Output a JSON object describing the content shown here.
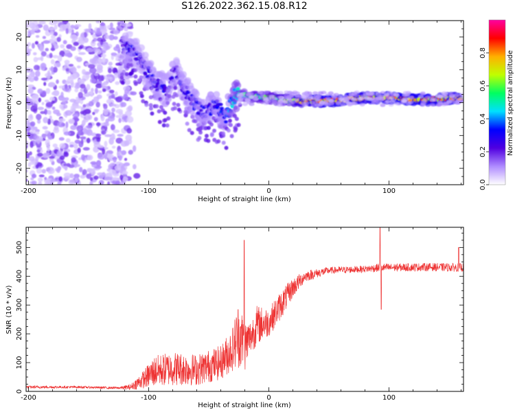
{
  "title": "S126.2022.362.15.08.R12",
  "colorbar": {
    "label": "Normalized spectral amplitude",
    "ticks": [
      "0.0",
      "0.2",
      "0.4",
      "0.6",
      "0.8"
    ],
    "tick_values": [
      0.0,
      0.2,
      0.4,
      0.6,
      0.8
    ],
    "range": [
      0.0,
      1.0
    ],
    "stops": [
      "#ffffff",
      "#b08cff",
      "#5000e0",
      "#0000ff",
      "#00e0ff",
      "#00ff60",
      "#c0ff00",
      "#ffb000",
      "#ff0000",
      "#ff00a0"
    ]
  },
  "chart_data": [
    {
      "type": "heatmap",
      "title": "",
      "xlabel": "Height of straight line (km)",
      "ylabel": "Frequency (Hz)",
      "xlim": [
        -202,
        162
      ],
      "ylim": [
        -25,
        25
      ],
      "xticks": [
        -200,
        -100,
        0,
        100
      ],
      "xtick_labels": [
        "-200",
        "-100",
        "0",
        "100"
      ],
      "yticks": [
        -20,
        -10,
        0,
        10,
        20
      ],
      "ytick_labels": [
        "-20",
        "-10",
        "0",
        "10",
        "20"
      ],
      "noise_region": {
        "x": [
          -202,
          -115
        ],
        "y": [
          -25,
          25
        ],
        "amplitude": [
          0.05,
          0.2
        ]
      },
      "signal_track": [
        {
          "x": -122,
          "y": 17,
          "amp": 0.25
        },
        {
          "x": -115,
          "y": 16,
          "amp": 0.3
        },
        {
          "x": -105,
          "y": 12,
          "amp": 0.25
        },
        {
          "x": -98,
          "y": 8,
          "amp": 0.3
        },
        {
          "x": -92,
          "y": 5,
          "amp": 0.3
        },
        {
          "x": -85,
          "y": 3.5,
          "amp": 0.28
        },
        {
          "x": -78,
          "y": 10,
          "amp": 0.25
        },
        {
          "x": -70,
          "y": 4,
          "amp": 0.3
        },
        {
          "x": -62,
          "y": 0,
          "amp": 0.3
        },
        {
          "x": -55,
          "y": -3,
          "amp": 0.3
        },
        {
          "x": -45,
          "y": -1,
          "amp": 0.3
        },
        {
          "x": -35,
          "y": -4,
          "amp": 0.35
        },
        {
          "x": -28,
          "y": 2.5,
          "amp": 0.5
        },
        {
          "x": -15,
          "y": 2,
          "amp": 0.55
        },
        {
          "x": 0,
          "y": 1.5,
          "amp": 0.6
        },
        {
          "x": 20,
          "y": 0.5,
          "amp": 0.7
        },
        {
          "x": 50,
          "y": 0.5,
          "amp": 0.85
        },
        {
          "x": 80,
          "y": 1.5,
          "amp": 0.8
        },
        {
          "x": 100,
          "y": 1.5,
          "amp": 0.85
        },
        {
          "x": 130,
          "y": 0.8,
          "amp": 0.85
        },
        {
          "x": 160,
          "y": 1.5,
          "amp": 0.8
        }
      ]
    },
    {
      "type": "line",
      "title": "",
      "xlabel": "Height of straight line (km)",
      "ylabel": "SNR (10 * v/v)",
      "xlim": [
        -202,
        162
      ],
      "ylim": [
        0,
        570
      ],
      "xticks": [
        -200,
        -100,
        0,
        100
      ],
      "xtick_labels": [
        "-200",
        "-100",
        "0",
        "100"
      ],
      "yticks": [
        0,
        100,
        200,
        300,
        400,
        500
      ],
      "ytick_labels": [
        "0",
        "100",
        "200",
        "300",
        "400",
        "500"
      ],
      "color": "#ee3333",
      "envelope": {
        "x": [
          -202,
          -160,
          -125,
          -115,
          -105,
          -95,
          -80,
          -60,
          -40,
          -30,
          -25,
          -20,
          -15,
          -10,
          0,
          10,
          20,
          30,
          50,
          80,
          93,
          100,
          130,
          162
        ],
        "mean": [
          15,
          15,
          12,
          15,
          40,
          70,
          80,
          75,
          100,
          150,
          200,
          160,
          190,
          230,
          240,
          300,
          360,
          400,
          420,
          425,
          430,
          430,
          432,
          430
        ],
        "spread": [
          5,
          4,
          4,
          10,
          30,
          55,
          60,
          55,
          60,
          80,
          120,
          90,
          60,
          70,
          50,
          50,
          35,
          20,
          12,
          12,
          15,
          14,
          14,
          15
        ]
      },
      "spikes": [
        {
          "x": -20.5,
          "y": 525
        },
        {
          "x": 92.5,
          "y": 575
        },
        {
          "x": 93.5,
          "y": 285
        },
        {
          "x": 158,
          "y": 500
        }
      ]
    }
  ]
}
